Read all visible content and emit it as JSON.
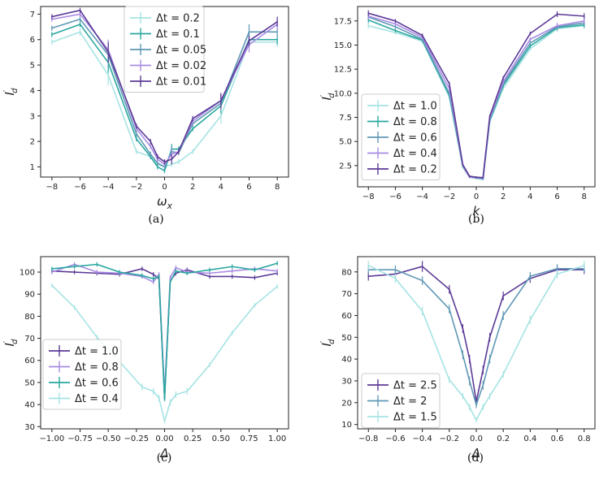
{
  "chart_data": [
    {
      "id": "a",
      "type": "line",
      "caption": "(a)",
      "xlabel": "ω",
      "xlabel_sub": "x",
      "ylabel": "I",
      "ylabel_sub": "d",
      "ylabel_prime": "′",
      "xlim": [
        -8.8,
        8.8
      ],
      "ylim": [
        0.6,
        7.3
      ],
      "xticks": [
        -8,
        -6,
        -4,
        -2,
        0,
        2,
        4,
        6,
        8
      ],
      "xtick_labels": [
        "−8",
        "−6",
        "−4",
        "−2",
        "0",
        "2",
        "4",
        "6",
        "8"
      ],
      "yticks": [
        1,
        2,
        3,
        4,
        5,
        6,
        7
      ],
      "ytick_labels": [
        "1",
        "2",
        "3",
        "4",
        "5",
        "6",
        "7"
      ],
      "legend_position": "top-center",
      "x": [
        -8,
        -6,
        -4,
        -2,
        -1,
        -0.5,
        0,
        0.5,
        1,
        2,
        4,
        6,
        8
      ],
      "series": [
        {
          "name": "Δt = 0.2",
          "color": "#a6e3e3",
          "values": [
            5.9,
            6.3,
            4.6,
            1.6,
            1.4,
            1.1,
            1.0,
            1.1,
            1.2,
            1.6,
            3.0,
            5.9,
            5.9
          ],
          "errors": [
            0.1,
            0.15,
            0.4,
            0.1,
            0.1,
            0.1,
            0.1,
            0.1,
            0.1,
            0.1,
            0.3,
            0.2,
            0.2
          ]
        },
        {
          "name": "Δt = 0.1",
          "color": "#2aa7a0",
          "values": [
            6.2,
            6.6,
            5.1,
            2.1,
            1.4,
            1.0,
            0.85,
            1.7,
            1.7,
            2.5,
            3.4,
            6.0,
            6.0
          ],
          "errors": [
            0.1,
            0.1,
            0.4,
            0.1,
            0.1,
            0.1,
            0.1,
            0.2,
            0.1,
            0.1,
            0.3,
            0.3,
            0.2
          ]
        },
        {
          "name": "Δt = 0.05",
          "color": "#5f98b5",
          "values": [
            6.45,
            6.8,
            5.4,
            2.3,
            1.5,
            1.15,
            1.0,
            1.6,
            1.55,
            2.7,
            3.5,
            6.3,
            6.3
          ],
          "errors": [
            0.1,
            0.1,
            0.5,
            0.1,
            0.1,
            0.1,
            0.1,
            0.2,
            0.1,
            0.1,
            0.3,
            0.3,
            0.2
          ]
        },
        {
          "name": "Δt = 0.02",
          "color": "#a98be3",
          "values": [
            6.8,
            7.0,
            5.6,
            2.5,
            1.8,
            1.3,
            1.1,
            1.5,
            1.6,
            2.8,
            3.6,
            5.8,
            6.6
          ],
          "errors": [
            0.1,
            0.1,
            0.4,
            0.1,
            0.1,
            0.1,
            0.1,
            0.2,
            0.1,
            0.1,
            0.3,
            0.3,
            0.2
          ]
        },
        {
          "name": "Δt = 0.01",
          "color": "#5b3a97",
          "values": [
            6.9,
            7.15,
            5.5,
            2.6,
            2.0,
            1.4,
            1.2,
            1.3,
            1.6,
            2.9,
            3.6,
            5.95,
            6.7
          ],
          "errors": [
            0.1,
            0.1,
            0.4,
            0.1,
            0.1,
            0.1,
            0.1,
            0.2,
            0.1,
            0.1,
            0.3,
            0.2,
            0.2
          ]
        }
      ]
    },
    {
      "id": "b",
      "type": "line",
      "caption": "(b)",
      "xlabel": "k",
      "xlabel_sub": "",
      "ylabel": "I",
      "ylabel_sub": "d",
      "ylabel_prime": "′",
      "xlim": [
        -8.8,
        8.8
      ],
      "ylim": [
        0.3,
        19.0
      ],
      "xticks": [
        -8,
        -6,
        -4,
        -2,
        0,
        2,
        4,
        6,
        8
      ],
      "xtick_labels": [
        "−8",
        "−6",
        "−4",
        "−2",
        "0",
        "2",
        "4",
        "6",
        "8"
      ],
      "yticks": [
        2.5,
        5.0,
        7.5,
        10.0,
        12.5,
        15.0,
        17.5
      ],
      "ytick_labels": [
        "2.5",
        "5.0",
        "7.5",
        "10.0",
        "12.5",
        "15.0",
        "17.5"
      ],
      "legend_position": "bottom-left",
      "x": [
        -8,
        -6,
        -4,
        -2,
        -1,
        -0.5,
        0,
        0.5,
        1,
        2,
        4,
        6,
        8
      ],
      "series": [
        {
          "name": "Δt = 1.0",
          "color": "#a6e3e3",
          "values": [
            17.0,
            16.3,
            15.4,
            9.6,
            2.4,
            1.3,
            1.2,
            1.1,
            7.0,
            10.5,
            14.6,
            16.7,
            17.0
          ],
          "errors": [
            0.3,
            0.2,
            0.2,
            0.2,
            0.1,
            0.1,
            0.1,
            0.1,
            0.2,
            0.2,
            0.2,
            0.3,
            0.3
          ]
        },
        {
          "name": "Δt = 0.8",
          "color": "#2aa7a0",
          "values": [
            17.6,
            16.5,
            15.5,
            9.8,
            2.4,
            1.3,
            1.2,
            1.1,
            7.2,
            10.8,
            14.9,
            16.8,
            17.1
          ],
          "errors": [
            0.3,
            0.2,
            0.2,
            0.2,
            0.1,
            0.1,
            0.1,
            0.1,
            0.2,
            0.2,
            0.2,
            0.3,
            0.3
          ]
        },
        {
          "name": "Δt = 0.6",
          "color": "#5f98b5",
          "values": [
            17.9,
            16.9,
            15.6,
            10.0,
            2.5,
            1.3,
            1.25,
            1.15,
            7.3,
            11.0,
            15.2,
            16.9,
            17.3
          ],
          "errors": [
            0.3,
            0.2,
            0.2,
            0.2,
            0.1,
            0.1,
            0.1,
            0.1,
            0.2,
            0.2,
            0.2,
            0.3,
            0.3
          ]
        },
        {
          "name": "Δt = 0.4",
          "color": "#a98be3",
          "values": [
            18.0,
            17.2,
            15.8,
            10.5,
            2.5,
            1.3,
            1.25,
            1.2,
            7.4,
            11.2,
            15.6,
            17.0,
            17.5
          ],
          "errors": [
            0.3,
            0.2,
            0.2,
            0.2,
            0.1,
            0.1,
            0.1,
            0.1,
            0.2,
            0.2,
            0.2,
            0.3,
            0.3
          ]
        },
        {
          "name": "Δt = 0.2",
          "color": "#5b3a97",
          "values": [
            18.3,
            17.5,
            16.0,
            11.0,
            2.6,
            1.4,
            1.3,
            1.25,
            7.6,
            11.6,
            16.2,
            18.2,
            18.0
          ],
          "errors": [
            0.3,
            0.2,
            0.2,
            0.2,
            0.1,
            0.1,
            0.1,
            0.1,
            0.2,
            0.2,
            0.2,
            0.3,
            0.3
          ]
        }
      ]
    },
    {
      "id": "c",
      "type": "line",
      "caption": "(c)",
      "xlabel": "Δ",
      "xlabel_sub": "",
      "ylabel": "I",
      "ylabel_sub": "d",
      "ylabel_prime": "′",
      "xlim": [
        -1.1,
        1.1
      ],
      "ylim": [
        29.0,
        107.0
      ],
      "xticks": [
        -1.0,
        -0.75,
        -0.5,
        -0.25,
        0.0,
        0.25,
        0.5,
        0.75,
        1.0
      ],
      "xtick_labels": [
        "−1.00",
        "−0.75",
        "−0.50",
        "−0.25",
        "0.00",
        "0.25",
        "0.50",
        "0.75",
        "1.00"
      ],
      "yticks": [
        30,
        40,
        50,
        60,
        70,
        80,
        90,
        100
      ],
      "ytick_labels": [
        "30",
        "40",
        "50",
        "60",
        "70",
        "80",
        "90",
        "100"
      ],
      "legend_position": "bottom-left",
      "x": [
        -1.0,
        -0.8,
        -0.6,
        -0.4,
        -0.2,
        -0.1,
        -0.05,
        0.0,
        0.05,
        0.1,
        0.2,
        0.4,
        0.6,
        0.8,
        1.0
      ],
      "series": [
        {
          "name": "Δt = 1.0",
          "color": "#5b3a97",
          "values": [
            100.5,
            100.0,
            99.5,
            99.0,
            101.5,
            99.0,
            97.0,
            43.0,
            96.0,
            99.5,
            101.0,
            98.0,
            98.0,
            97.5,
            99.5
          ],
          "errors": [
            1.0,
            1.0,
            1.0,
            1.0,
            1.0,
            1.0,
            1.0,
            1.0,
            1.0,
            1.0,
            1.0,
            1.0,
            1.0,
            1.0,
            1.0
          ]
        },
        {
          "name": "Δt = 0.8",
          "color": "#a98be3",
          "values": [
            100.0,
            103.5,
            100.0,
            99.5,
            98.0,
            95.5,
            99.0,
            45.0,
            97.5,
            102.0,
            100.0,
            99.5,
            100.5,
            101.5,
            100.5
          ],
          "errors": [
            1.0,
            1.0,
            1.0,
            1.0,
            1.0,
            1.0,
            1.0,
            1.0,
            1.0,
            1.0,
            1.0,
            1.0,
            1.0,
            1.0,
            1.0
          ]
        },
        {
          "name": "Δt = 0.6",
          "color": "#2aa7a0",
          "values": [
            101.5,
            102.5,
            103.5,
            100.0,
            98.5,
            97.0,
            98.0,
            42.5,
            95.5,
            100.5,
            99.5,
            101.0,
            102.5,
            101.0,
            104.0
          ],
          "errors": [
            1.0,
            1.0,
            1.0,
            1.0,
            1.0,
            1.0,
            1.0,
            1.0,
            1.0,
            1.0,
            1.0,
            1.0,
            1.0,
            1.0,
            1.0
          ]
        },
        {
          "name": "Δt = 0.4",
          "color": "#a6e3e3",
          "values": [
            94.0,
            84.0,
            70.5,
            59.5,
            48.0,
            46.0,
            43.0,
            32.5,
            41.0,
            44.5,
            46.0,
            58.0,
            72.5,
            85.0,
            93.5
          ],
          "errors": [
            1.0,
            1.0,
            1.0,
            1.0,
            1.5,
            1.5,
            1.5,
            1.0,
            1.5,
            1.5,
            1.5,
            1.0,
            1.0,
            1.0,
            1.0
          ]
        }
      ]
    },
    {
      "id": "d",
      "type": "line",
      "caption": "(d)",
      "xlabel": "Δ",
      "xlabel_sub": "",
      "ylabel": "I",
      "ylabel_sub": "d",
      "ylabel_prime": "′",
      "xlim": [
        -0.88,
        0.88
      ],
      "ylim": [
        8.0,
        87.0
      ],
      "xticks": [
        -0.8,
        -0.6,
        -0.4,
        -0.2,
        0.0,
        0.2,
        0.4,
        0.6,
        0.8
      ],
      "xtick_labels": [
        "−0.8",
        "−0.6",
        "−0.4",
        "−0.2",
        "0.0",
        "0.2",
        "0.4",
        "0.6",
        "0.8"
      ],
      "yticks": [
        10,
        20,
        30,
        40,
        50,
        60,
        70,
        80
      ],
      "ytick_labels": [
        "10",
        "20",
        "30",
        "40",
        "50",
        "60",
        "70",
        "80"
      ],
      "legend_position": "bottom-left",
      "x": [
        -0.8,
        -0.6,
        -0.4,
        -0.2,
        -0.1,
        -0.05,
        0.0,
        0.05,
        0.1,
        0.2,
        0.4,
        0.6,
        0.8
      ],
      "series": [
        {
          "name": "Δt = 2.5",
          "color": "#5b3a97",
          "values": [
            78.0,
            79.0,
            82.5,
            72.0,
            54.0,
            40.0,
            20.5,
            35.0,
            50.0,
            69.0,
            77.0,
            81.0,
            81.0
          ],
          "errors": [
            2.0,
            2.0,
            2.5,
            2.0,
            2.0,
            2.0,
            1.5,
            2.0,
            2.0,
            2.0,
            2.0,
            2.0,
            2.0
          ]
        },
        {
          "name": "Δt = 2",
          "color": "#5f98b5",
          "values": [
            81.0,
            81.0,
            76.0,
            63.0,
            42.0,
            30.0,
            19.0,
            28.0,
            40.0,
            60.0,
            78.0,
            81.5,
            81.5
          ],
          "errors": [
            2.0,
            2.0,
            2.0,
            2.0,
            2.0,
            2.0,
            1.5,
            2.0,
            2.0,
            2.0,
            2.0,
            2.0,
            2.0
          ]
        },
        {
          "name": "Δt = 1.5",
          "color": "#a6e3e3",
          "values": [
            83.0,
            77.0,
            62.0,
            30.5,
            23.0,
            18.0,
            12.0,
            18.0,
            23.0,
            33.0,
            58.0,
            79.0,
            83.0
          ],
          "errors": [
            2.0,
            2.0,
            2.0,
            1.5,
            1.5,
            1.5,
            1.0,
            1.5,
            1.5,
            1.5,
            2.0,
            2.0,
            2.0
          ]
        }
      ]
    }
  ]
}
